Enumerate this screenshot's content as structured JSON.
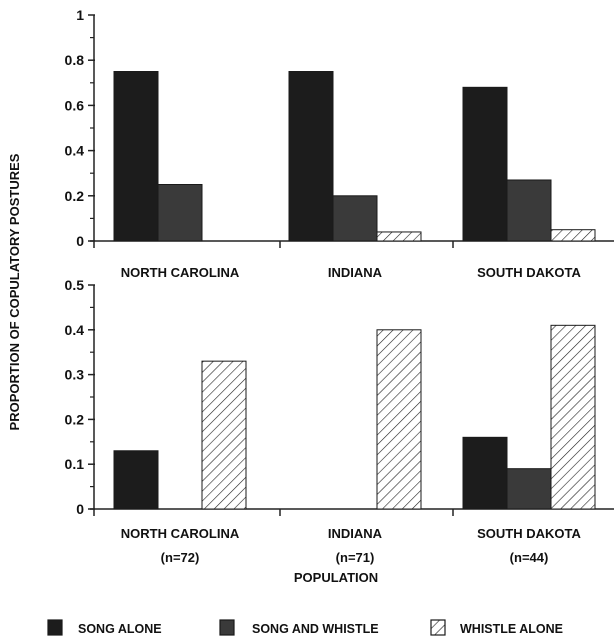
{
  "chart_data": {
    "type": "bar",
    "ylabel": "PROPORTION OF COPULATORY POSTURES",
    "xlabel": "POPULATION",
    "legend": {
      "placement": "bottom",
      "entries": [
        {
          "label": "SONG ALONE",
          "color": "#1c1c1c",
          "pattern": "solid"
        },
        {
          "label": "SONG AND WHISTLE",
          "color": "#3a3a3a",
          "pattern": "solid"
        },
        {
          "label": "WHISTLE ALONE",
          "color": "#ffffff",
          "pattern": "hatched"
        }
      ]
    },
    "panels": [
      {
        "categories": [
          "NORTH CAROLINA",
          "INDIANA",
          "SOUTH DAKOTA"
        ],
        "ylim": [
          0,
          1
        ],
        "yticks": [
          "0",
          "0.2",
          "0.4",
          "0.6",
          "0.8",
          "1"
        ],
        "grid": false,
        "series": [
          {
            "name": "SONG ALONE",
            "values": [
              0.75,
              0.75,
              0.68
            ]
          },
          {
            "name": "SONG AND WHISTLE",
            "values": [
              0.25,
              0.2,
              0.27
            ]
          },
          {
            "name": "WHISTLE ALONE",
            "values": [
              0.0,
              0.04,
              0.05
            ]
          }
        ]
      },
      {
        "categories": [
          "NORTH CAROLINA",
          "INDIANA",
          "SOUTH DAKOTA"
        ],
        "sample_sizes": [
          "(n=72)",
          "(n=71)",
          "(n=44)"
        ],
        "ylim": [
          0,
          0.5
        ],
        "yticks": [
          "0",
          "0.1",
          "0.2",
          "0.3",
          "0.4",
          "0.5"
        ],
        "grid": false,
        "series": [
          {
            "name": "SONG ALONE",
            "values": [
              0.13,
              0.0,
              0.16
            ]
          },
          {
            "name": "SONG AND WHISTLE",
            "values": [
              0.0,
              0.0,
              0.09
            ]
          },
          {
            "name": "WHISTLE ALONE",
            "values": [
              0.33,
              0.4,
              0.41
            ]
          }
        ]
      }
    ]
  }
}
